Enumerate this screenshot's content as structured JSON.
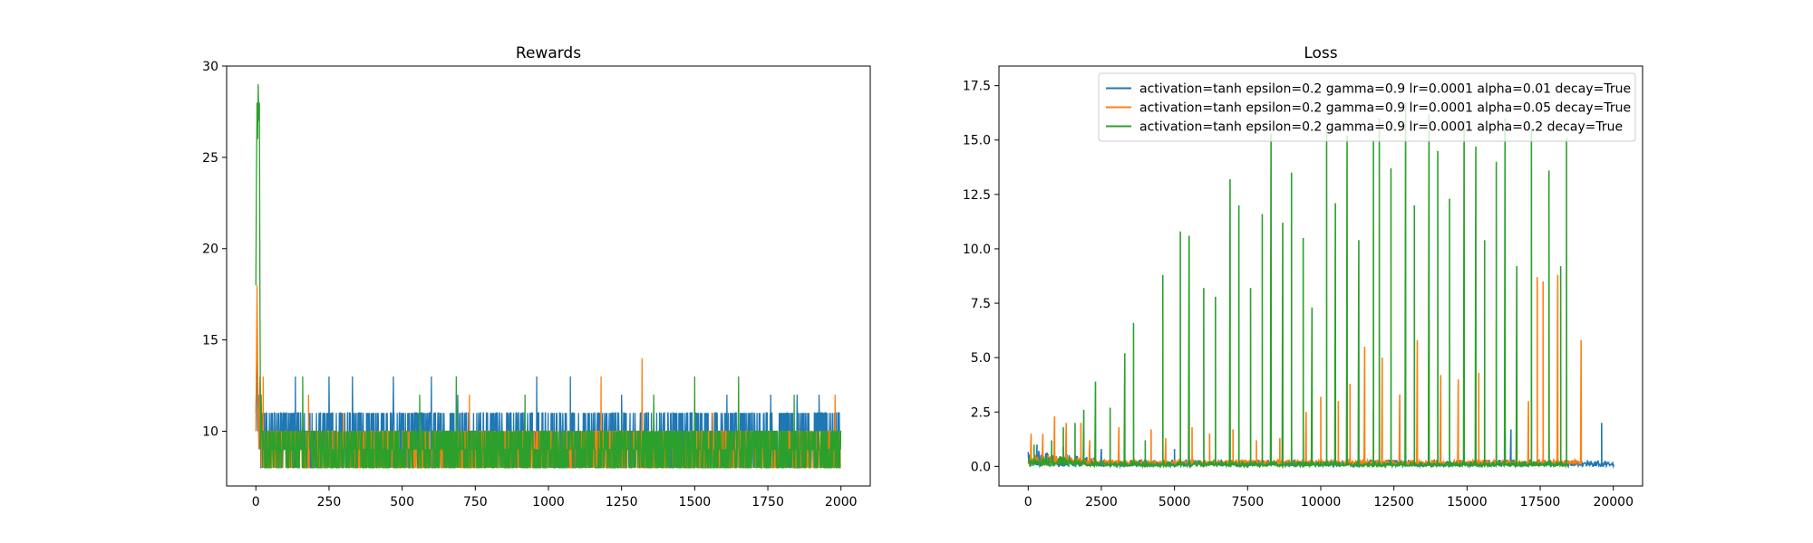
{
  "colors": {
    "blue": "#1f77b4",
    "orange": "#ff7f0e",
    "green": "#2ca02c",
    "frame": "#000000",
    "legend_border": "#cccccc"
  },
  "chart_data": [
    {
      "type": "line",
      "title": "Rewards",
      "xlabel": "",
      "ylabel": "",
      "xlim": [
        -100,
        2100
      ],
      "ylim": [
        7.0,
        30.0
      ],
      "xticks": [
        0,
        250,
        500,
        750,
        1000,
        1250,
        1500,
        1750,
        2000
      ],
      "yticks": [
        10,
        15,
        20,
        25,
        30
      ],
      "grid": false,
      "n_points": 2000,
      "series": [
        {
          "color": "blue",
          "early": [
            [
              0,
              11
            ],
            [
              3,
              14
            ],
            [
              6,
              10
            ],
            [
              9,
              12
            ],
            [
              12,
              9
            ],
            [
              16,
              11
            ]
          ],
          "range": [
            8,
            11
          ],
          "spikes": [
            [
              135,
              13
            ],
            [
              250,
              13
            ],
            [
              330,
              13
            ],
            [
              470,
              13
            ],
            [
              600,
              13
            ],
            [
              690,
              12
            ],
            [
              960,
              13
            ],
            [
              1075,
              13
            ],
            [
              1250,
              12
            ],
            [
              1610,
              12
            ],
            [
              1760,
              12
            ],
            [
              1850,
              12
            ],
            [
              1925,
              12
            ]
          ]
        },
        {
          "color": "orange",
          "early": [
            [
              0,
              10
            ],
            [
              4,
              18
            ],
            [
              7,
              12
            ],
            [
              10,
              9
            ],
            [
              14,
              13
            ],
            [
              18,
              10
            ]
          ],
          "range": [
            8,
            10
          ],
          "spikes": [
            [
              25,
              13
            ],
            [
              180,
              12
            ],
            [
              300,
              11
            ],
            [
              730,
              12
            ],
            [
              1180,
              13
            ],
            [
              1320,
              14
            ],
            [
              1560,
              11
            ],
            [
              1980,
              12
            ]
          ]
        },
        {
          "color": "green",
          "early": [
            [
              0,
              18
            ],
            [
              2,
              24
            ],
            [
              4,
              28
            ],
            [
              6,
              26
            ],
            [
              8,
              29
            ],
            [
              10,
              27
            ],
            [
              12,
              28
            ],
            [
              14,
              17
            ],
            [
              16,
              9
            ],
            [
              18,
              12
            ],
            [
              20,
              10
            ]
          ],
          "range": [
            8,
            10
          ],
          "spikes": [
            [
              160,
              13
            ],
            [
              560,
              12
            ],
            [
              685,
              13
            ],
            [
              920,
              12
            ],
            [
              1360,
              12
            ],
            [
              1500,
              13
            ],
            [
              1650,
              13
            ],
            [
              1840,
              12
            ]
          ]
        }
      ]
    },
    {
      "type": "line",
      "title": "Loss",
      "xlabel": "",
      "ylabel": "",
      "xlim": [
        -1000,
        21000
      ],
      "ylim": [
        -0.9,
        18.4
      ],
      "xticks": [
        0,
        2500,
        5000,
        7500,
        10000,
        12500,
        15000,
        17500,
        20000
      ],
      "yticks": [
        0.0,
        2.5,
        5.0,
        7.5,
        10.0,
        12.5,
        15.0,
        17.5
      ],
      "yticks_format": 1,
      "grid": false,
      "legend_position": "upper right",
      "series": [
        {
          "name": "activation=tanh epsilon=0.2 gamma=0.9 lr=0.0001 alpha=0.01 decay=True",
          "color": "blue",
          "x_end": 20000,
          "band_lo": 0.0,
          "band_hi": 0.8,
          "spikes": [
            [
              300,
              1.0
            ],
            [
              1200,
              0.9
            ],
            [
              2500,
              0.8
            ],
            [
              5000,
              0.8
            ],
            [
              9000,
              0.8
            ],
            [
              16300,
              1.5
            ],
            [
              16500,
              1.7
            ],
            [
              17800,
              1.2
            ],
            [
              19600,
              2.0
            ]
          ]
        },
        {
          "name": "activation=tanh epsilon=0.2 gamma=0.9 lr=0.0001 alpha=0.05 decay=True",
          "color": "orange",
          "x_end": 18900,
          "band_lo": 0.1,
          "band_hi": 0.6,
          "spikes": [
            [
              100,
              1.5
            ],
            [
              500,
              1.5
            ],
            [
              900,
              2.3
            ],
            [
              1300,
              2.0
            ],
            [
              1800,
              2.0
            ],
            [
              2100,
              1.2
            ],
            [
              3100,
              1.8
            ],
            [
              4200,
              1.7
            ],
            [
              4700,
              1.3
            ],
            [
              5600,
              1.8
            ],
            [
              6200,
              1.5
            ],
            [
              7000,
              1.7
            ],
            [
              7800,
              1.2
            ],
            [
              8600,
              1.3
            ],
            [
              9500,
              2.5
            ],
            [
              10000,
              3.2
            ],
            [
              10600,
              3.0
            ],
            [
              11000,
              3.8
            ],
            [
              11500,
              5.5
            ],
            [
              11800,
              2.6
            ],
            [
              12100,
              5.0
            ],
            [
              12700,
              3.3
            ],
            [
              13300,
              5.8
            ],
            [
              13700,
              6.7
            ],
            [
              14100,
              4.2
            ],
            [
              14700,
              4.0
            ],
            [
              15400,
              4.3
            ],
            [
              16000,
              6.7
            ],
            [
              16700,
              5.0
            ],
            [
              17100,
              3.0
            ],
            [
              17400,
              8.7
            ],
            [
              17600,
              8.5
            ],
            [
              17800,
              8.3
            ],
            [
              18100,
              8.8
            ],
            [
              18900,
              5.8
            ]
          ]
        },
        {
          "name": "activation=tanh epsilon=0.2 gamma=0.9 lr=0.0001 alpha=0.2 decay=True",
          "color": "green",
          "x_end": 18400,
          "band_lo": 0.0,
          "band_hi": 0.6,
          "spikes": [
            [
              200,
              1.0
            ],
            [
              800,
              1.2
            ],
            [
              1200,
              1.8
            ],
            [
              1600,
              2.0
            ],
            [
              1900,
              2.6
            ],
            [
              2300,
              3.9
            ],
            [
              2800,
              2.7
            ],
            [
              3300,
              5.2
            ],
            [
              3600,
              6.6
            ],
            [
              4000,
              1.2
            ],
            [
              4600,
              8.8
            ],
            [
              5200,
              10.8
            ],
            [
              5500,
              10.6
            ],
            [
              6000,
              8.2
            ],
            [
              6400,
              7.8
            ],
            [
              6900,
              13.2
            ],
            [
              7200,
              12.0
            ],
            [
              7600,
              8.2
            ],
            [
              8000,
              11.6
            ],
            [
              8300,
              15.3
            ],
            [
              8700,
              11.2
            ],
            [
              9000,
              13.5
            ],
            [
              9400,
              10.5
            ],
            [
              9700,
              7.3
            ],
            [
              10200,
              15.5
            ],
            [
              10500,
              12.1
            ],
            [
              10900,
              15.2
            ],
            [
              11300,
              10.4
            ],
            [
              11800,
              15.0
            ],
            [
              12000,
              16.0
            ],
            [
              12400,
              13.7
            ],
            [
              12900,
              16.7
            ],
            [
              13200,
              12.0
            ],
            [
              13700,
              16.2
            ],
            [
              14000,
              14.5
            ],
            [
              14400,
              12.3
            ],
            [
              14900,
              15.9
            ],
            [
              15300,
              14.7
            ],
            [
              15600,
              10.4
            ],
            [
              16000,
              14.0
            ],
            [
              16300,
              16.0
            ],
            [
              16700,
              9.2
            ],
            [
              17200,
              15.5
            ],
            [
              17800,
              13.6
            ],
            [
              18200,
              9.2
            ],
            [
              18400,
              15.1
            ]
          ]
        }
      ]
    }
  ]
}
